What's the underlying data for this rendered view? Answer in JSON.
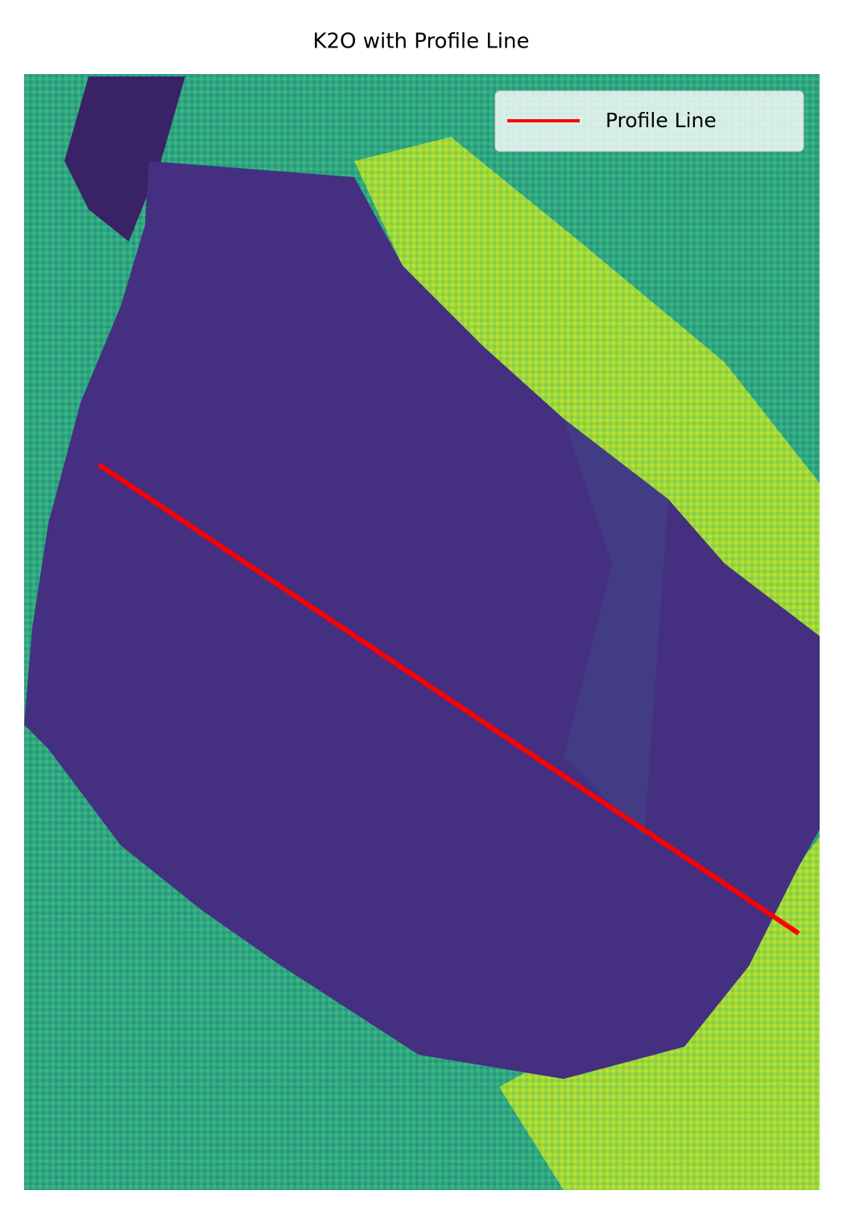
{
  "chart_data": {
    "type": "image-line",
    "title": "K2O with Profile Line",
    "xlim": [
      0,
      250
    ],
    "ylim": [
      350,
      0
    ],
    "series": [
      {
        "name": "Profile Line",
        "color": "#ff0000",
        "x": [
          23.5,
          243.4
        ],
        "values": [
          122.5,
          269.5
        ]
      }
    ],
    "legend": "upper right"
  }
}
